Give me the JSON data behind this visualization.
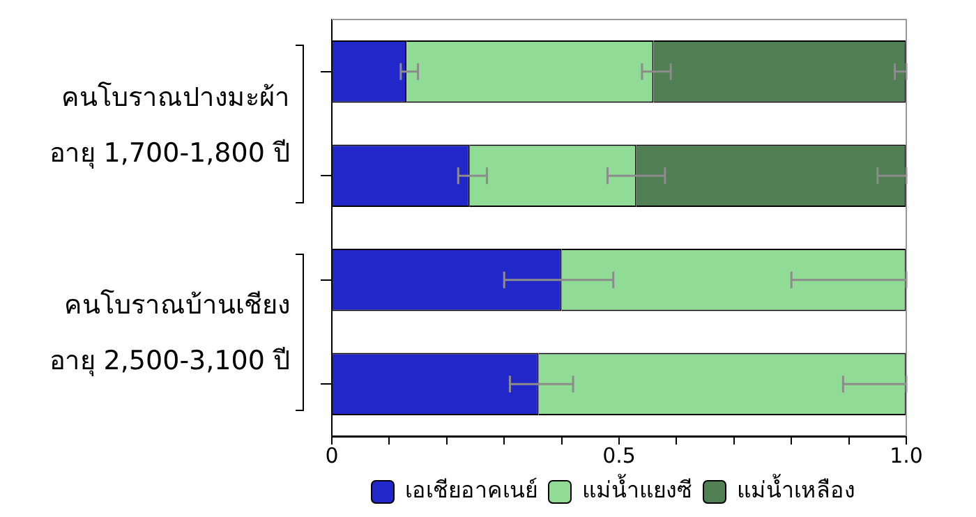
{
  "chart_data": {
    "type": "bar",
    "orientation": "horizontal",
    "stacked": true,
    "categories": [
      null,
      null,
      null,
      null
    ],
    "series": [
      {
        "name": "เอเชียอาคเนย์",
        "color": "#2127c8",
        "values": [
          0.13,
          0.24,
          0.4,
          0.36
        ],
        "errors": [
          [
            0.12,
            0.15
          ],
          [
            0.22,
            0.27
          ],
          [
            0.3,
            0.49
          ],
          [
            0.31,
            0.42
          ]
        ]
      },
      {
        "name": "แม่น้ำแยงซี",
        "color": "#90dc96",
        "values": [
          0.43,
          0.29,
          0.6,
          0.64
        ],
        "errors": [
          [
            0.54,
            0.59
          ],
          [
            0.48,
            0.58
          ],
          [
            0.8,
            1.0
          ],
          [
            0.89,
            1.0
          ]
        ]
      },
      {
        "name": "แม่น้ำเหลือง",
        "color": "#4f7f52",
        "values": [
          0.44,
          0.47,
          null,
          null
        ],
        "errors": [
          [
            0.98,
            1.0
          ],
          [
            0.95,
            1.0
          ],
          null,
          null
        ]
      }
    ],
    "xlim": [
      0,
      1.0
    ],
    "xticks": [
      0,
      {
        "value": 0.1,
        "label": null
      },
      {
        "value": 0.2,
        "label": null
      },
      {
        "value": 0.3,
        "label": null
      },
      {
        "value": 0.4,
        "label": null
      },
      0.5,
      {
        "value": 0.6,
        "label": null
      },
      {
        "value": 0.7,
        "label": null
      },
      {
        "value": 0.8,
        "label": null
      },
      {
        "value": 0.9,
        "label": null
      },
      {
        "value": 1.0,
        "label": "1.0"
      }
    ],
    "annotations": [
      "คนโบราณปางมะผ้า อายุ 1,700-1,800 ปี",
      "คนโบราณบ้านเชียง อายุ 2,500-3,100 ปี"
    ],
    "grid": false,
    "legend": "bottom"
  }
}
